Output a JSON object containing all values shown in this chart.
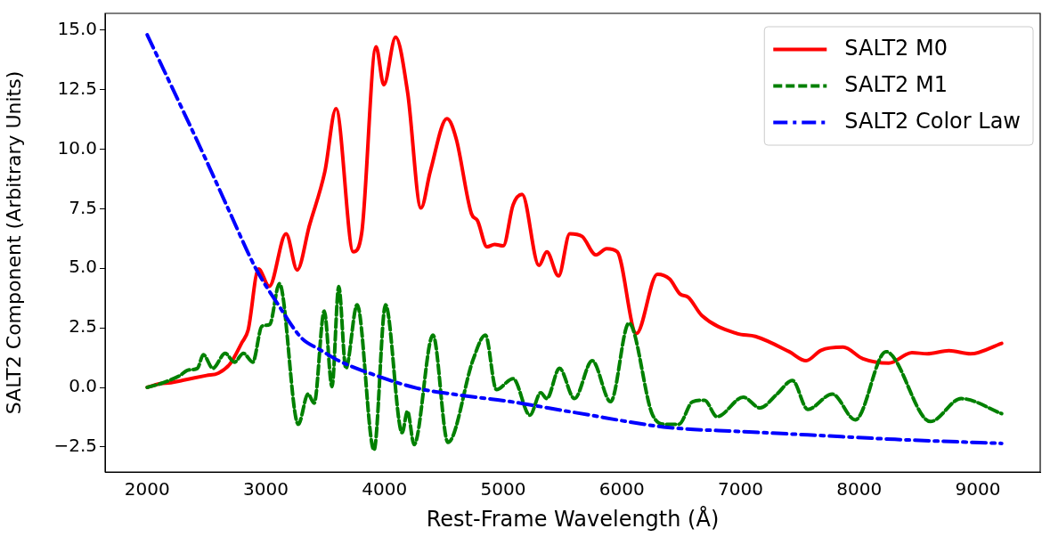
{
  "chart_data": {
    "type": "line",
    "xlabel": "Rest-Frame Wavelength (Å)",
    "ylabel": "SALT2 Component (Arbitrary Units)",
    "xlim": [
      1645,
      9525
    ],
    "ylim": [
      -3.55,
      15.7
    ],
    "xticks": [
      2000,
      3000,
      4000,
      5000,
      6000,
      7000,
      8000,
      9000
    ],
    "yticks": [
      {
        "value": -2.5,
        "label": "−2.5"
      },
      {
        "value": 0,
        "label": "0.0"
      },
      {
        "value": 2.5,
        "label": "2.5"
      },
      {
        "value": 5,
        "label": "5.0"
      },
      {
        "value": 7.5,
        "label": "7.5"
      },
      {
        "value": 10,
        "label": "10.0"
      },
      {
        "value": 12.5,
        "label": "12.5"
      },
      {
        "value": 15,
        "label": "15.0"
      }
    ],
    "grid": false,
    "legend": "top right",
    "marker": "none",
    "series": [
      {
        "name": "SALT2 M0",
        "color": "#ff0000",
        "line_style": "solid",
        "x": [
          2000,
          2100,
          2200,
          2300,
          2400,
          2500,
          2600,
          2700,
          2800,
          2850,
          2938,
          3028,
          3170,
          3264,
          3366,
          3497,
          3591,
          3737,
          3808,
          3928,
          3994,
          4093,
          4195,
          4307,
          4385,
          4526,
          4603,
          4733,
          4783,
          4863,
          4927,
          5000,
          5083,
          5159,
          5301,
          5367,
          5466,
          5561,
          5664,
          5781,
          5871,
          5961,
          6122,
          6299,
          6402,
          6492,
          6557,
          6673,
          6971,
          7125,
          7410,
          7552,
          7679,
          7864,
          8032,
          8249,
          8444,
          8572,
          8756,
          8937,
          9200
        ],
        "values": [
          0,
          0.15,
          0.2,
          0.3,
          0.4,
          0.5,
          0.6,
          1.0,
          1.9,
          2.4,
          4.97,
          4.24,
          6.45,
          4.93,
          6.78,
          9.06,
          11.7,
          5.69,
          6.5,
          14.3,
          12.7,
          14.7,
          12.36,
          7.53,
          9.06,
          11.28,
          10.45,
          7.28,
          7.0,
          5.9,
          6.0,
          5.94,
          7.66,
          8.1,
          5.12,
          5.69,
          4.68,
          6.45,
          6.34,
          5.56,
          5.82,
          5.69,
          2.26,
          4.75,
          4.55,
          3.91,
          3.79,
          3.02,
          2.26,
          2.14,
          1.5,
          1.12,
          1.56,
          1.69,
          1.2,
          1.02,
          1.46,
          1.41,
          1.54,
          1.41,
          1.85
        ]
      },
      {
        "name": "SALT2 M1",
        "color": "#008000",
        "line_style": "dashed",
        "x": [
          2000,
          2115,
          2190,
          2270,
          2347,
          2423,
          2473,
          2553,
          2657,
          2734,
          2811,
          2889,
          2967,
          3032,
          3114,
          3273,
          3355,
          3407,
          3492,
          3557,
          3614,
          3674,
          3769,
          3911,
          4008,
          4148,
          4193,
          4249,
          4408,
          4534,
          4747,
          4850,
          4942,
          5083,
          5225,
          5316,
          5367,
          5474,
          5600,
          5750,
          5905,
          6059,
          6260,
          6374,
          6479,
          6596,
          6697,
          6801,
          7023,
          7164,
          7307,
          7437,
          7566,
          7773,
          7967,
          8225,
          8600,
          8859,
          9200
        ],
        "values": [
          0,
          0.16,
          0.3,
          0.48,
          0.73,
          0.8,
          1.37,
          0.8,
          1.43,
          1.06,
          1.43,
          1.06,
          2.57,
          2.64,
          4.36,
          -1.55,
          -0.28,
          -0.66,
          3.21,
          0.03,
          4.23,
          0.8,
          3.47,
          -2.63,
          3.47,
          -1.9,
          -1.0,
          -2.4,
          2.2,
          -2.31,
          1.18,
          2.2,
          -0.09,
          0.37,
          -1.17,
          -0.22,
          -0.47,
          0.8,
          -0.47,
          1.12,
          -0.6,
          2.7,
          -1.17,
          -1.55,
          -1.55,
          -0.6,
          -0.54,
          -1.23,
          -0.41,
          -0.86,
          -0.28,
          0.29,
          -0.92,
          -0.28,
          -1.36,
          1.5,
          -1.43,
          -0.47,
          -1.1
        ]
      },
      {
        "name": "SALT2 Color Law",
        "color": "#0000ff",
        "line_style": "dashdot",
        "x": [
          2000,
          2500,
          2700,
          2915,
          3100,
          3303,
          3450,
          3614,
          3900,
          4273,
          4600,
          5053,
          5600,
          6389,
          7000,
          7566,
          8300,
          9200
        ],
        "values": [
          14.8,
          9.5,
          7.3,
          4.99,
          3.5,
          2.06,
          1.6,
          1.12,
          0.55,
          -0.03,
          -0.3,
          -0.59,
          -1.05,
          -1.68,
          -1.85,
          -1.99,
          -2.18,
          -2.35
        ]
      }
    ]
  }
}
